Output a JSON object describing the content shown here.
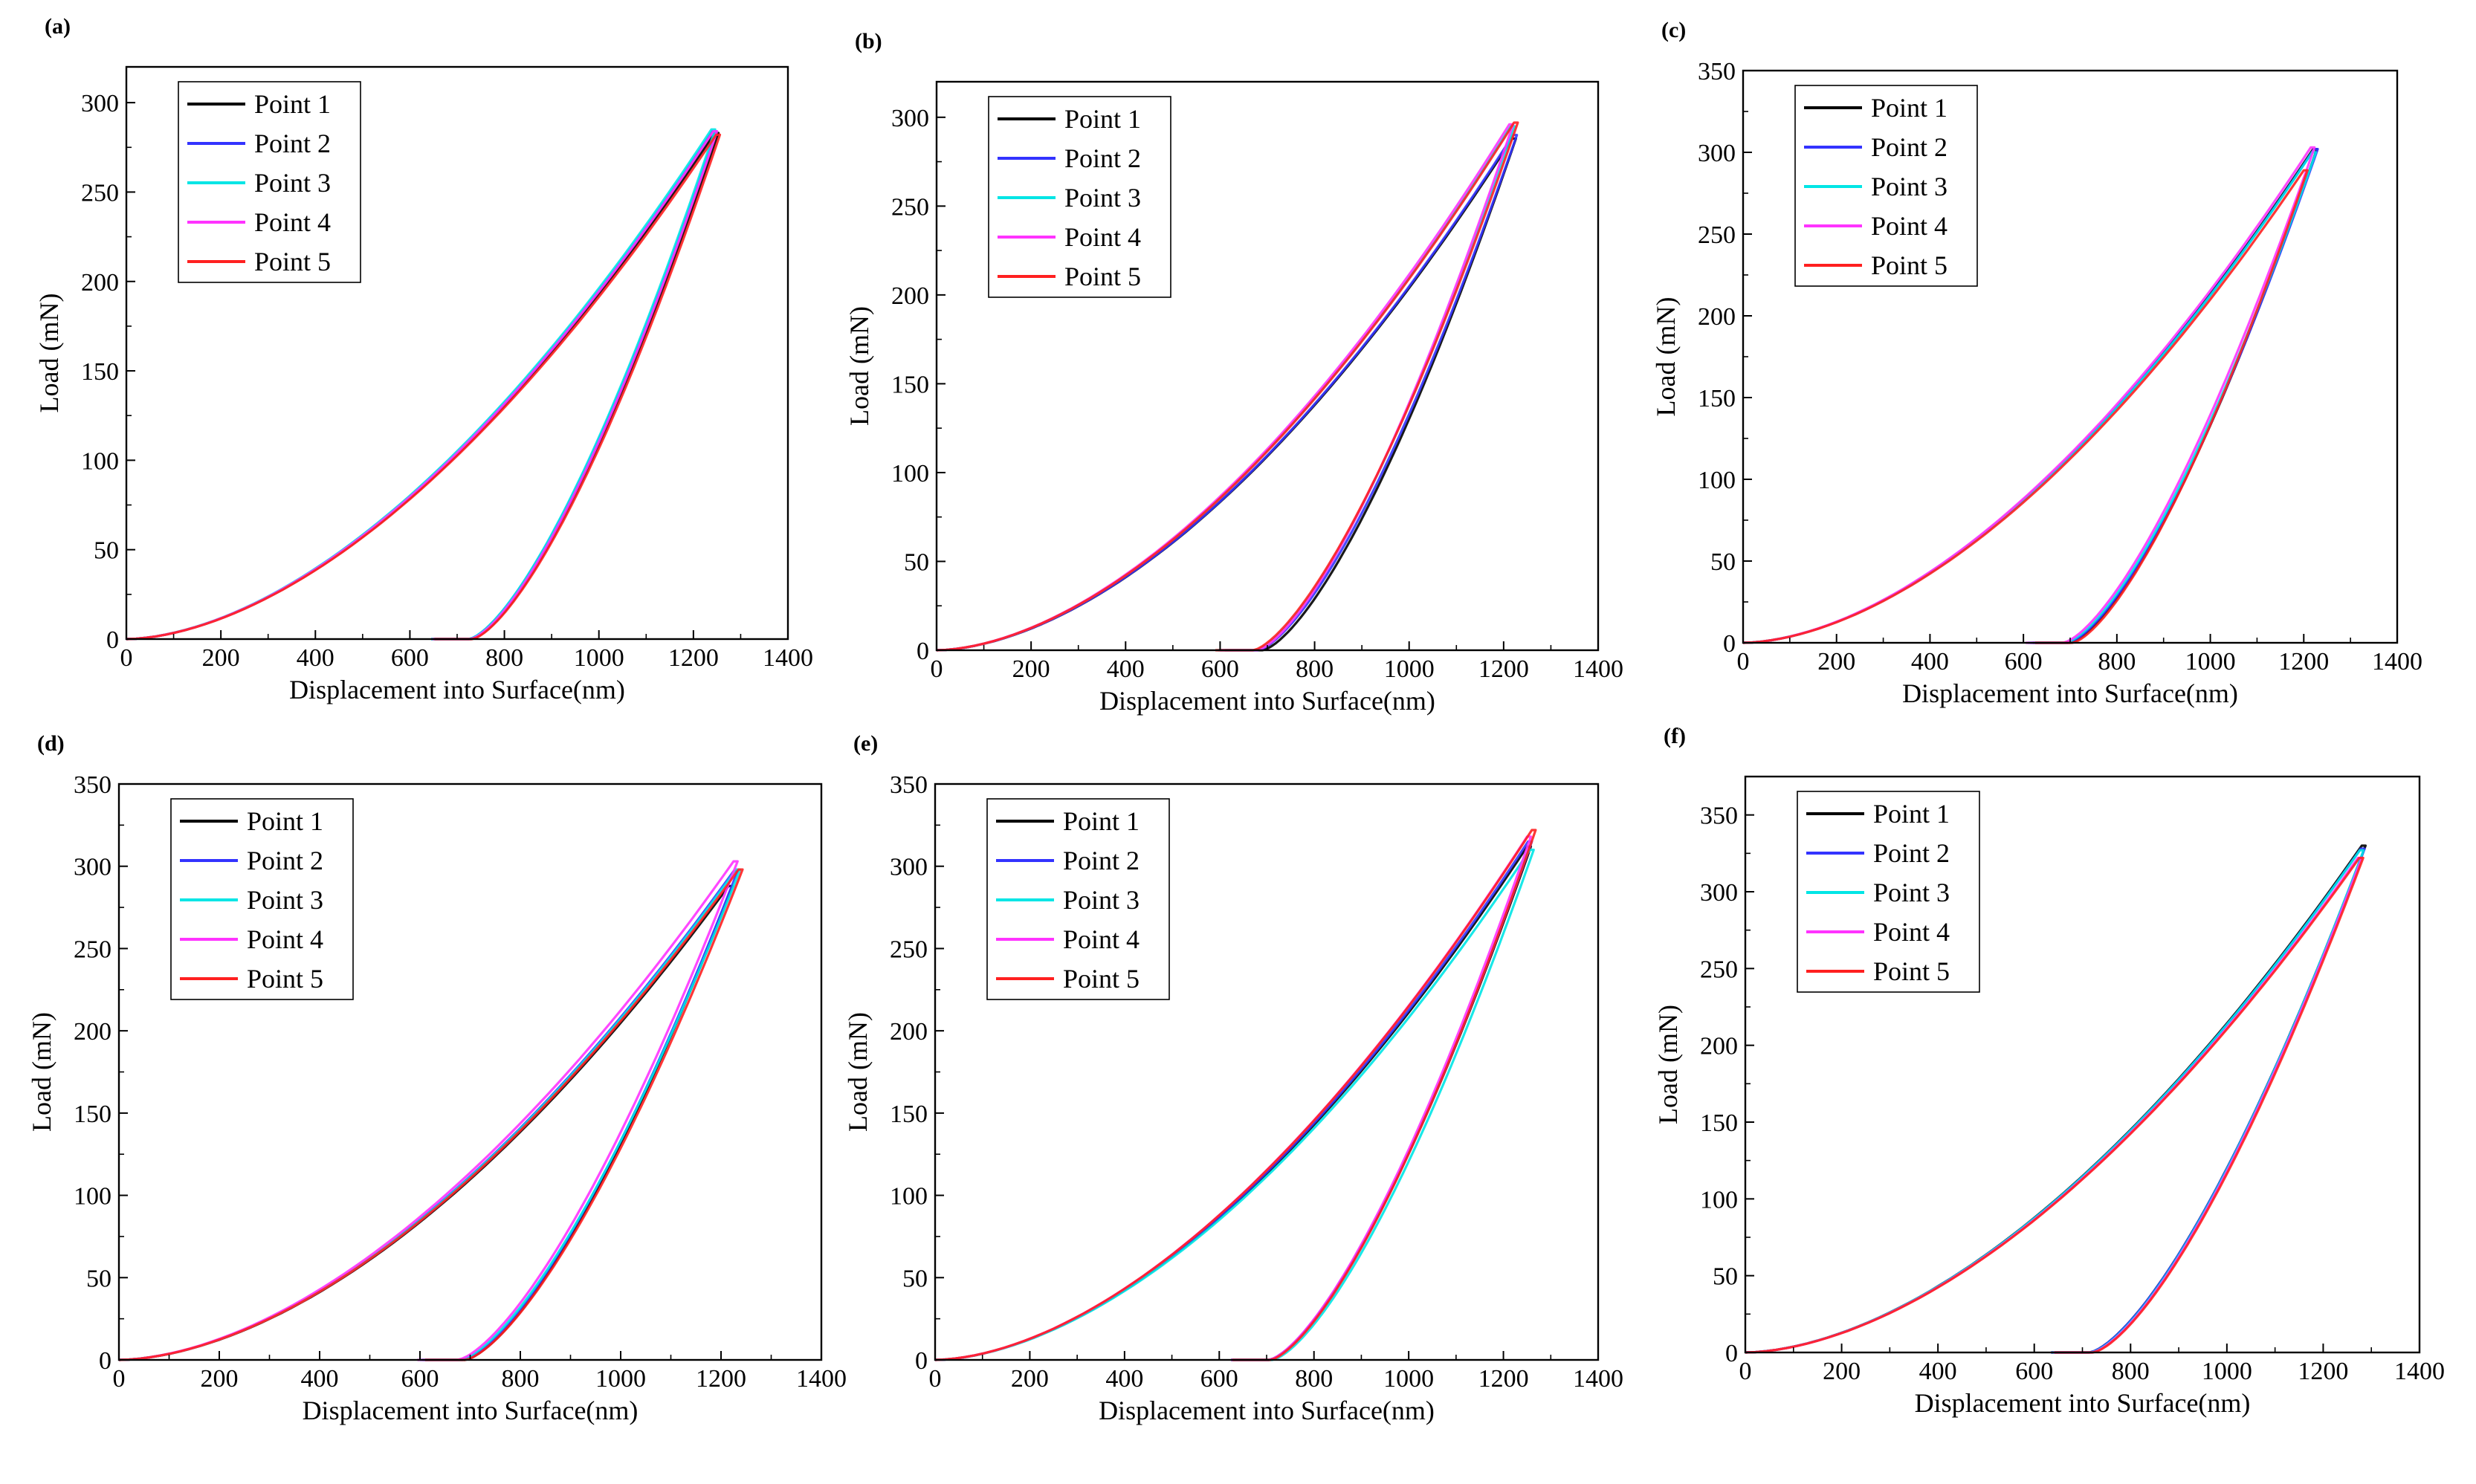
{
  "series_colors": [
    "#000000",
    "#3333ff",
    "#00e5e5",
    "#ff33ff",
    "#ff2020"
  ],
  "chart_data": [
    {
      "type": "line",
      "panel": "(a)",
      "xlabel": "Displacement into Surface(nm)",
      "ylabel": "Load (mN)",
      "xlim": [
        0,
        1400
      ],
      "ylim": [
        0,
        320
      ],
      "xticks": [
        0,
        200,
        400,
        600,
        800,
        1000,
        1200,
        1400
      ],
      "yticks": [
        0,
        50,
        100,
        150,
        200,
        250,
        300
      ],
      "legend": "top-left",
      "series": [
        {
          "name": "Point 1",
          "h_max": 1245,
          "P_max": 283,
          "h_f": 730
        },
        {
          "name": "Point 2",
          "h_max": 1240,
          "P_max": 284,
          "h_f": 725
        },
        {
          "name": "Point 3",
          "h_max": 1238,
          "P_max": 285,
          "h_f": 725
        },
        {
          "name": "Point 4",
          "h_max": 1242,
          "P_max": 284,
          "h_f": 728
        },
        {
          "name": "Point 5",
          "h_max": 1248,
          "P_max": 282,
          "h_f": 732
        }
      ]
    },
    {
      "type": "line",
      "panel": "(b)",
      "xlabel": "Displacement into Surface(nm)",
      "ylabel": "Load (mN)",
      "xlim": [
        0,
        1400
      ],
      "ylim": [
        0,
        320
      ],
      "xticks": [
        0,
        200,
        400,
        600,
        800,
        1000,
        1200,
        1400
      ],
      "yticks": [
        0,
        50,
        100,
        150,
        200,
        250,
        300
      ],
      "legend": "top-left",
      "series": [
        {
          "name": "Point 1",
          "h_max": 1218,
          "P_max": 288,
          "h_f": 690
        },
        {
          "name": "Point 2",
          "h_max": 1220,
          "P_max": 290,
          "h_f": 680
        },
        {
          "name": "Point 3",
          "h_max": 1215,
          "P_max": 295,
          "h_f": 675
        },
        {
          "name": "Point 4",
          "h_max": 1212,
          "P_max": 296,
          "h_f": 678
        },
        {
          "name": "Point 5",
          "h_max": 1222,
          "P_max": 297,
          "h_f": 670
        }
      ]
    },
    {
      "type": "line",
      "panel": "(c)",
      "xlabel": "Displacement into Surface(nm)",
      "ylabel": "Load (mN)",
      "xlim": [
        0,
        1400
      ],
      "ylim": [
        0,
        350
      ],
      "xticks": [
        0,
        200,
        400,
        600,
        800,
        1000,
        1200,
        1400
      ],
      "yticks": [
        0,
        50,
        100,
        150,
        200,
        250,
        300,
        350
      ],
      "legend": "top-left",
      "series": [
        {
          "name": "Point 1",
          "h_max": 1220,
          "P_max": 302,
          "h_f": 700
        },
        {
          "name": "Point 2",
          "h_max": 1222,
          "P_max": 302,
          "h_f": 695
        },
        {
          "name": "Point 3",
          "h_max": 1218,
          "P_max": 300,
          "h_f": 690
        },
        {
          "name": "Point 4",
          "h_max": 1215,
          "P_max": 303,
          "h_f": 685
        },
        {
          "name": "Point 5",
          "h_max": 1200,
          "P_max": 289,
          "h_f": 705
        }
      ]
    },
    {
      "type": "line",
      "panel": "(d)",
      "xlabel": "Displacement into Surface(nm)",
      "ylabel": "Load (mN)",
      "xlim": [
        0,
        1400
      ],
      "ylim": [
        0,
        350
      ],
      "xticks": [
        0,
        200,
        400,
        600,
        800,
        1000,
        1200,
        1400
      ],
      "yticks": [
        0,
        50,
        100,
        150,
        200,
        250,
        300,
        350
      ],
      "legend": "top-left",
      "series": [
        {
          "name": "Point 1",
          "h_max": 1215,
          "P_max": 288,
          "h_f": 690
        },
        {
          "name": "Point 2",
          "h_max": 1225,
          "P_max": 297,
          "h_f": 685
        },
        {
          "name": "Point 3",
          "h_max": 1230,
          "P_max": 298,
          "h_f": 680
        },
        {
          "name": "Point 4",
          "h_max": 1225,
          "P_max": 303,
          "h_f": 675
        },
        {
          "name": "Point 5",
          "h_max": 1235,
          "P_max": 298,
          "h_f": 690
        }
      ]
    },
    {
      "type": "line",
      "panel": "(e)",
      "xlabel": "Displacement into Surface(nm)",
      "ylabel": "Load (mN)",
      "xlim": [
        0,
        1400
      ],
      "ylim": [
        0,
        350
      ],
      "xticks": [
        0,
        200,
        400,
        600,
        800,
        1000,
        1200,
        1400
      ],
      "yticks": [
        0,
        50,
        100,
        150,
        200,
        250,
        300,
        350
      ],
      "legend": "top-left",
      "series": [
        {
          "name": "Point 1",
          "h_max": 1250,
          "P_max": 312,
          "h_f": 705
        },
        {
          "name": "Point 2",
          "h_max": 1252,
          "P_max": 315,
          "h_f": 705
        },
        {
          "name": "Point 3",
          "h_max": 1256,
          "P_max": 310,
          "h_f": 712
        },
        {
          "name": "Point 4",
          "h_max": 1250,
          "P_max": 318,
          "h_f": 705
        },
        {
          "name": "Point 5",
          "h_max": 1260,
          "P_max": 322,
          "h_f": 708
        }
      ]
    },
    {
      "type": "line",
      "panel": "(f)",
      "xlabel": "Displacement into Surface(nm)",
      "ylabel": "Load (mN)",
      "xlim": [
        0,
        1400
      ],
      "ylim": [
        0,
        375
      ],
      "xticks": [
        0,
        200,
        400,
        600,
        800,
        1000,
        1200,
        1400
      ],
      "yticks": [
        0,
        50,
        100,
        150,
        200,
        250,
        300,
        350
      ],
      "legend": "top-left",
      "series": [
        {
          "name": "Point 1",
          "h_max": 1280,
          "P_max": 330,
          "h_f": 715
        },
        {
          "name": "Point 2",
          "h_max": 1278,
          "P_max": 328,
          "h_f": 715
        },
        {
          "name": "Point 3",
          "h_max": 1276,
          "P_max": 327,
          "h_f": 718
        },
        {
          "name": "Point 4",
          "h_max": 1272,
          "P_max": 322,
          "h_f": 720
        },
        {
          "name": "Point 5",
          "h_max": 1275,
          "P_max": 322,
          "h_f": 722
        }
      ]
    }
  ]
}
